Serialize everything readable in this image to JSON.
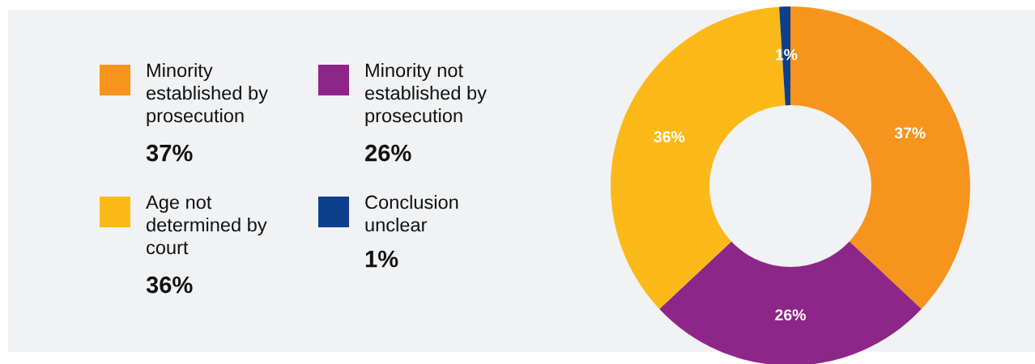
{
  "chart_data": {
    "type": "donut",
    "categories": [
      "Minority established by prosecution",
      "Minority not established by prosecution",
      "Age not determined by court",
      "Conclusion unclear"
    ],
    "values": [
      37,
      26,
      36,
      1
    ],
    "colors": [
      "#f7941d",
      "#8e2689",
      "#fbb919",
      "#0d3f8c"
    ],
    "value_labels": [
      "37%",
      "26%",
      "36%",
      "1%"
    ],
    "legend": "left"
  }
}
